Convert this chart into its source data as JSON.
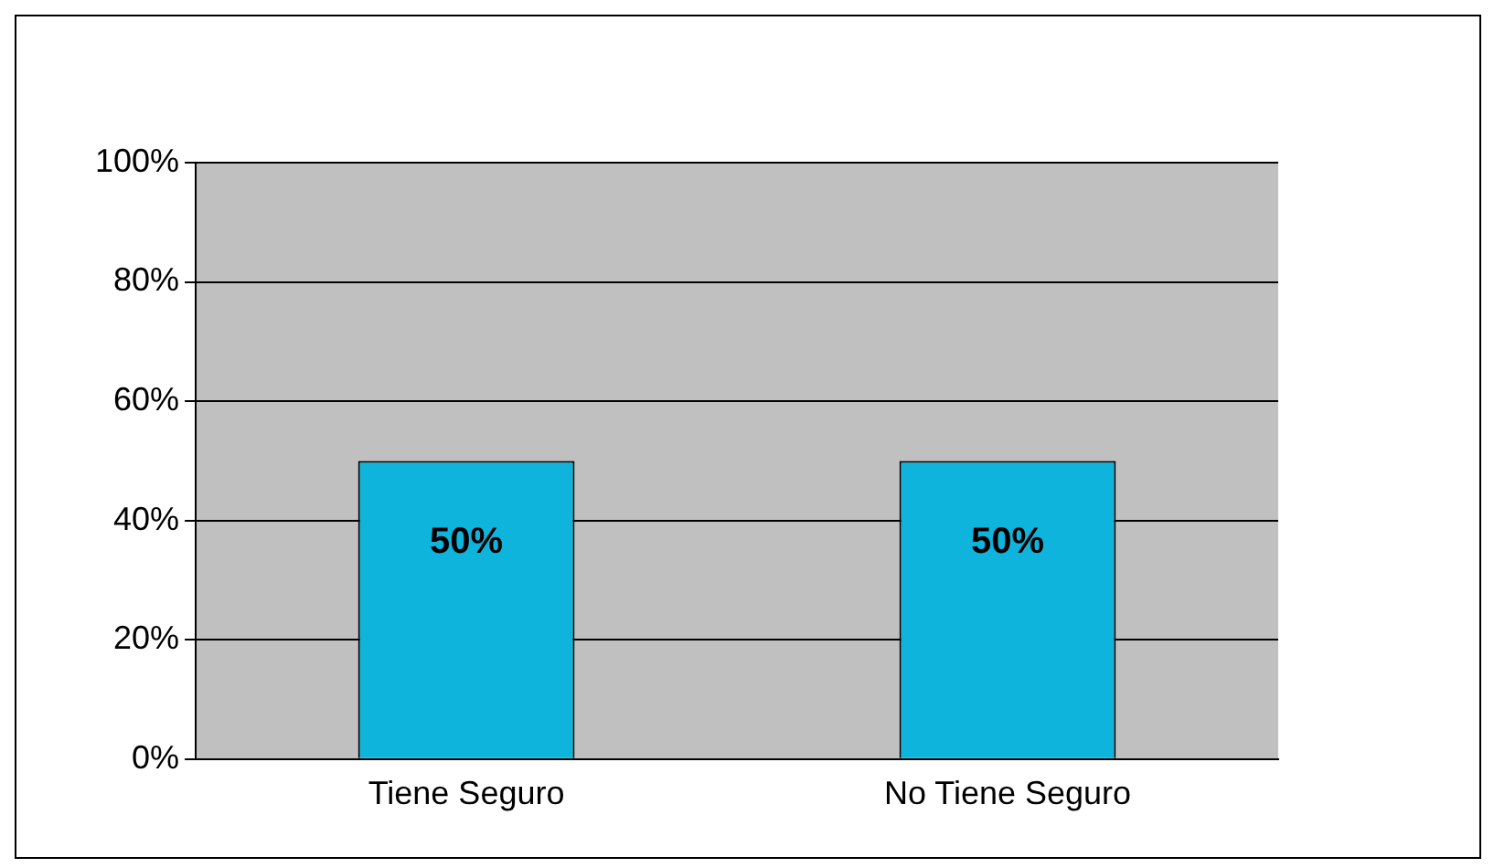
{
  "chart_data": {
    "type": "bar",
    "categories": [
      "Tiene Seguro",
      "No Tiene Seguro"
    ],
    "values": [
      50,
      50
    ],
    "color": "#0fb4dc",
    "value_labels": [
      "50%",
      "50%"
    ],
    "ylim": [
      0,
      100
    ],
    "yticks": [
      {
        "value": 0,
        "label": "0%"
      },
      {
        "value": 20,
        "label": "20%"
      },
      {
        "value": 40,
        "label": "40%"
      },
      {
        "value": 60,
        "label": "60%"
      },
      {
        "value": 80,
        "label": "80%"
      },
      {
        "value": 100,
        "label": "100%"
      }
    ],
    "grid": "y"
  }
}
